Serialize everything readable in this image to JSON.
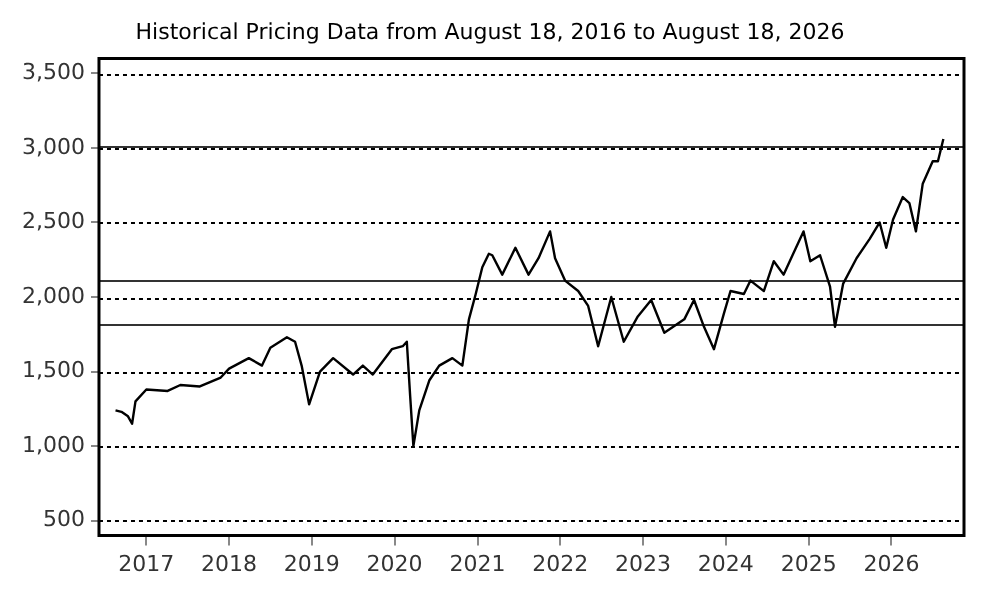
{
  "chart_data": {
    "type": "line",
    "title": "Historical Pricing Data from August 18, 2016 to August 18, 2026",
    "x": [
      "2016-08-18",
      "2016-09-13",
      "2016-10-12",
      "2016-10-30",
      "2016-11-14",
      "2017-01-01",
      "2017-04-05",
      "2017-05-31",
      "2017-08-25",
      "2017-11-25",
      "2018-01-01",
      "2018-03-29",
      "2018-05-26",
      "2018-07-02",
      "2018-09-13",
      "2018-10-19",
      "2018-11-17",
      "2018-12-20",
      "2019-02-06",
      "2019-04-05",
      "2019-07-02",
      "2019-08-14",
      "2019-09-27",
      "2019-12-20",
      "2020-02-06",
      "2020-02-24",
      "2020-03-10",
      "2020-03-24",
      "2020-04-19",
      "2020-06-02",
      "2020-07-16",
      "2020-09-12",
      "2020-10-26",
      "2020-11-24",
      "2020-12-24",
      "2021-01-22",
      "2021-02-20",
      "2021-03-07",
      "2021-04-20",
      "2021-06-17",
      "2021-08-14",
      "2021-09-27",
      "2021-11-17",
      "2021-12-09",
      "2022-01-22",
      "2022-03-21",
      "2022-05-04",
      "2022-06-17",
      "2022-08-14",
      "2022-10-08",
      "2022-12-09",
      "2023-02-06",
      "2023-04-05",
      "2023-07-02",
      "2023-08-14",
      "2023-09-27",
      "2023-11-10",
      "2023-12-24",
      "2024-01-22",
      "2024-03-21",
      "2024-04-19",
      "2024-06-17",
      "2024-07-31",
      "2024-09-12",
      "2024-12-09",
      "2025-01-08",
      "2025-02-20",
      "2025-04-05",
      "2025-04-27",
      "2025-06-02",
      "2025-07-31",
      "2025-09-27",
      "2025-11-10",
      "2025-12-09",
      "2026-01-08",
      "2026-02-20",
      "2026-03-21",
      "2026-04-19",
      "2026-05-19",
      "2026-07-02",
      "2026-07-25",
      "2026-08-18"
    ],
    "series": [
      {
        "color": "#000000",
        "values": [
          1240,
          1230,
          1200,
          1150,
          1300,
          1380,
          1370,
          1410,
          1400,
          1460,
          1520,
          1590,
          1540,
          1660,
          1730,
          1700,
          1540,
          1280,
          1500,
          1590,
          1480,
          1540,
          1480,
          1650,
          1670,
          1700,
          1330,
          1000,
          1240,
          1440,
          1540,
          1590,
          1540,
          1850,
          2020,
          2200,
          2290,
          2280,
          2150,
          2330,
          2150,
          2260,
          2440,
          2260,
          2110,
          2040,
          1940,
          1670,
          2000,
          1700,
          1870,
          1980,
          1760,
          1850,
          1980,
          1800,
          1650,
          1890,
          2040,
          2020,
          2110,
          2040,
          2240,
          2150,
          2440,
          2240,
          2280,
          2070,
          1800,
          2090,
          2260,
          2390,
          2500,
          2330,
          2520,
          2670,
          2630,
          2440,
          2760,
          2910,
          2910,
          3060
        ]
      }
    ],
    "xlim": [
      "2016-06-06",
      "2026-11-17"
    ],
    "xticks": [
      {
        "value": "2017-01-01",
        "label": "2017"
      },
      {
        "value": "2018-01-01",
        "label": "2018"
      },
      {
        "value": "2019-01-01",
        "label": "2019"
      },
      {
        "value": "2020-01-01",
        "label": "2020"
      },
      {
        "value": "2021-01-01",
        "label": "2021"
      },
      {
        "value": "2022-01-01",
        "label": "2022"
      },
      {
        "value": "2023-01-01",
        "label": "2023"
      },
      {
        "value": "2024-01-01",
        "label": "2024"
      },
      {
        "value": "2025-01-01",
        "label": "2025"
      },
      {
        "value": "2026-01-01",
        "label": "2026"
      }
    ],
    "ylim": [
      400,
      3600
    ],
    "yticks": [
      {
        "value": 500,
        "label": "500"
      },
      {
        "value": 1000,
        "label": "1,000"
      },
      {
        "value": 1500,
        "label": "1,500"
      },
      {
        "value": 2000,
        "label": "2,000"
      },
      {
        "value": 2500,
        "label": "2,500"
      },
      {
        "value": 3000,
        "label": "3,000"
      },
      {
        "value": 3500,
        "label": "3,500"
      }
    ],
    "grid": "y",
    "legend": false,
    "marker": "none",
    "line_style": "solid",
    "ref_lines": [
      {
        "axis": "y",
        "value": 3010,
        "color": "#333333"
      },
      {
        "axis": "y",
        "value": 2120,
        "color": "#333333"
      },
      {
        "axis": "y",
        "value": 1820,
        "color": "#333333"
      }
    ]
  }
}
